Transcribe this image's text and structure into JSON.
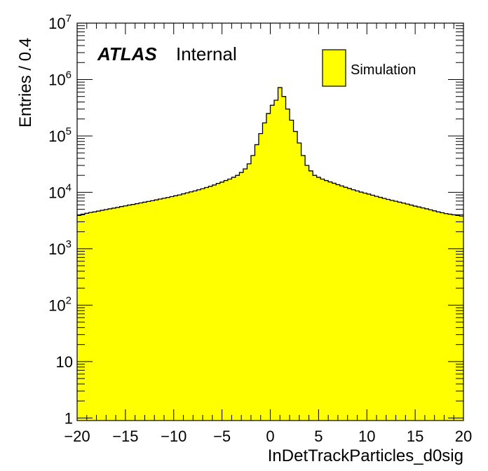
{
  "chart_data": {
    "type": "bar",
    "histogram": true,
    "xlabel": "InDetTrackParticles_d0sig",
    "ylabel": "Entries / 0.4",
    "xlim": [
      -20,
      20
    ],
    "ylim": [
      0.9,
      10000000
    ],
    "yscale": "log",
    "bin_width": 0.4,
    "fill_color": "#ffff00",
    "line_color": "#000000",
    "x_ticks": [
      "−20",
      "−15",
      "−10",
      "−5",
      "0",
      "5",
      "10",
      "15",
      "20"
    ],
    "x_tick_values": [
      -20,
      -15,
      -10,
      -5,
      0,
      5,
      10,
      15,
      20
    ],
    "y_ticks": [
      {
        "value": 1,
        "base": "1",
        "exp": ""
      },
      {
        "value": 10,
        "base": "10",
        "exp": ""
      },
      {
        "value": 100,
        "base": "10",
        "exp": "2"
      },
      {
        "value": 1000,
        "base": "10",
        "exp": "3"
      },
      {
        "value": 10000,
        "base": "10",
        "exp": "4"
      },
      {
        "value": 100000,
        "base": "10",
        "exp": "5"
      },
      {
        "value": 1000000,
        "base": "10",
        "exp": "6"
      },
      {
        "value": 10000000,
        "base": "10",
        "exp": "7"
      }
    ],
    "experiment_label": "ATLAS",
    "status_label": "Internal",
    "legend": [
      {
        "name": "Simulation",
        "color": "#ffff00"
      }
    ],
    "legend_position": "top-right",
    "series": [
      {
        "name": "Simulation",
        "bin_edges_start": -20,
        "values": [
          3900,
          4100,
          4250,
          4400,
          4500,
          4650,
          4800,
          4950,
          5100,
          5250,
          5400,
          5600,
          5750,
          5950,
          6100,
          6300,
          6500,
          6700,
          6900,
          7100,
          7350,
          7600,
          7850,
          8100,
          8400,
          8700,
          9000,
          9400,
          9800,
          10200,
          10600,
          11100,
          11600,
          12200,
          12800,
          13500,
          14400,
          15200,
          16200,
          17200,
          18500,
          20000,
          22500,
          26000,
          32000,
          45000,
          70000,
          110000,
          170000,
          250000,
          350000,
          430000,
          720000,
          500000,
          300000,
          190000,
          120000,
          75000,
          45000,
          30000,
          24000,
          20000,
          18500,
          17200,
          16200,
          15300,
          14500,
          13700,
          13000,
          12300,
          11700,
          11100,
          10600,
          10100,
          9700,
          9300,
          8900,
          8500,
          8150,
          7800,
          7500,
          7200,
          6950,
          6700,
          6450,
          6200,
          5950,
          5700,
          5500,
          5300,
          5100,
          4900,
          4700,
          4500,
          4350,
          4200,
          4100,
          4000,
          3900,
          3800
        ]
      }
    ]
  }
}
